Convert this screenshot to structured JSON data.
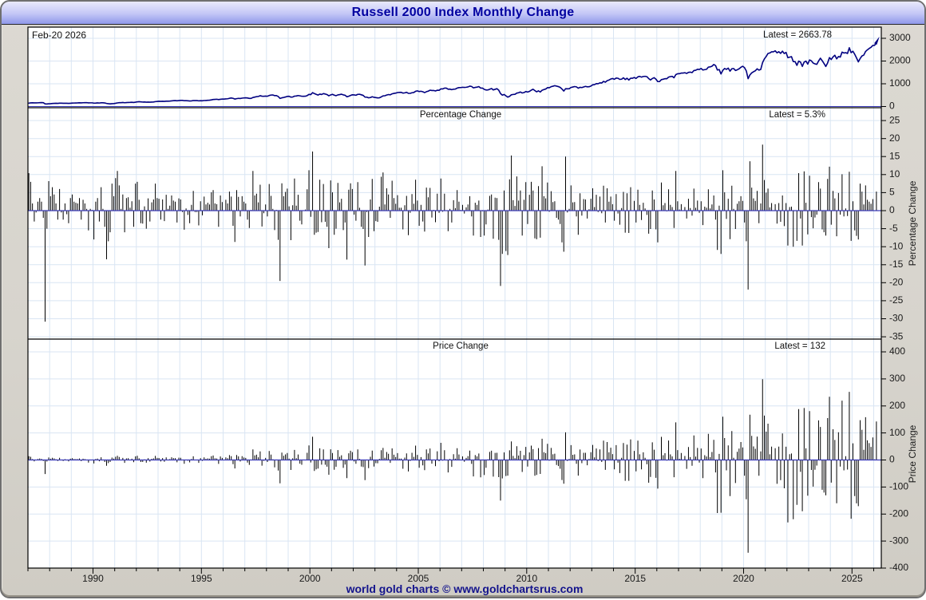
{
  "window": {
    "title": "Russell 2000 Index Monthly Change",
    "date_label": "Feb-20  2026",
    "footer": "world gold charts © www.goldchartsrus.com"
  },
  "colors": {
    "title_text": "#0000a0",
    "titlebar_top": "#e9e9fc",
    "titlebar_bottom": "#9098ea",
    "window_bg": "#d8d5ce",
    "plot_bg": "#ffffff",
    "gridline": "#d9e5f3",
    "axis_border": "#000000",
    "bar": "#000000",
    "index_line": "#000080",
    "zero_line": "#3a3ab8",
    "label_text": "#111111",
    "footer_text": "#14148c"
  },
  "panels": {
    "index": {
      "latest_label": "Latest = 2663.78",
      "ticks": [
        3000,
        2000,
        1000,
        0
      ]
    },
    "percent": {
      "title": "Percentage Change",
      "latest_label": "Latest = 5.3%",
      "axis_label": "Percentage Change",
      "ticks": [
        25,
        20,
        15,
        10,
        5,
        0,
        -5,
        -10,
        -15,
        -20,
        -25,
        -30,
        -35
      ]
    },
    "price": {
      "title": "Price Change",
      "latest_label": "Latest = 132",
      "axis_label": "Price Change",
      "ticks": [
        400,
        300,
        200,
        100,
        0,
        -100,
        -200,
        -300,
        -400
      ]
    }
  },
  "x_axis": {
    "year_tick_start": 1987,
    "year_tick_end": 2026,
    "labeled_years": [
      1990,
      1995,
      2000,
      2005,
      2010,
      2015,
      2020,
      2025
    ]
  },
  "chart_data": {
    "type": "line+bar",
    "title": "Russell 2000 Index Monthly Change",
    "x_start": {
      "year": 1987,
      "month": 1
    },
    "x_end": {
      "year": 2026,
      "month": 2
    },
    "start_prev_close": 135.0,
    "latest_index": 2663.78,
    "latest_pct_change": 5.3,
    "latest_price_change": 132,
    "index_axis_ticks": [
      0,
      1000,
      2000,
      3000
    ],
    "percent_axis_range": [
      -35,
      25
    ],
    "price_axis_range": [
      -400,
      400
    ],
    "note": "Monthly percent changes estimated from chart bars; top-panel index line and bottom-panel price changes are derived by compounding from start_prev_close.",
    "monthly_pct_change": [
      10.4,
      8.0,
      2.0,
      -3.0,
      -0.5,
      2.5,
      3.5,
      2.5,
      -2.0,
      -30.8,
      -5.0,
      8.2,
      4.0,
      6.5,
      4.5,
      2.0,
      -2.5,
      6.0,
      -0.5,
      -2.5,
      2.0,
      -1.0,
      -3.5,
      3.5,
      4.5,
      2.5,
      2.2,
      2.0,
      3.5,
      -2.5,
      3.0,
      2.0,
      0.5,
      -5.5,
      0.5,
      0.2,
      -8.0,
      2.5,
      3.5,
      -3.0,
      6.5,
      0.5,
      -4.5,
      -13.5,
      -8.5,
      -6.0,
      7.5,
      4.0,
      9.0,
      11.0,
      7.0,
      0.5,
      4.5,
      -6.0,
      3.5,
      3.7,
      0.8,
      2.6,
      -4.5,
      7.5,
      8.0,
      3.0,
      -3.5,
      -3.6,
      1.2,
      -5.0,
      3.4,
      -3.0,
      2.3,
      3.1,
      7.5,
      3.5,
      3.3,
      -2.5,
      3.1,
      -2.9,
      4.4,
      0.5,
      1.4,
      4.2,
      2.8,
      2.5,
      -3.3,
      3.4,
      3.1,
      -0.4,
      -5.3,
      0.6,
      -1.2,
      -3.5,
      1.6,
      5.5,
      -0.4,
      -0.4,
      -4.1,
      2.6,
      -1.3,
      3.9,
      1.7,
      2.2,
      1.7,
      5.1,
      5.7,
      2.0,
      1.8,
      -4.5,
      4.2,
      2.4,
      -0.1,
      3.0,
      2.0,
      5.3,
      3.9,
      -4.2,
      -8.7,
      5.7,
      3.8,
      -1.6,
      4.0,
      2.5,
      2.0,
      -2.5,
      -4.8,
      0.2,
      11.0,
      4.2,
      4.7,
      2.3,
      7.2,
      -4.4,
      -0.7,
      1.7,
      -1.6,
      7.4,
      4.1,
      0.5,
      -5.4,
      0.2,
      -8.1,
      -19.5,
      7.6,
      4.0,
      5.2,
      6.1,
      1.2,
      -8.2,
      1.5,
      8.9,
      1.4,
      4.4,
      -2.8,
      -3.8,
      -0.1,
      0.3,
      5.9,
      11.2,
      -1.7,
      16.4,
      -6.7,
      -6.1,
      -5.9,
      8.6,
      -3.2,
      7.4,
      -3.1,
      -4.5,
      -10.4,
      8.4,
      5.1,
      -6.7,
      -5.0,
      7.7,
      2.3,
      3.3,
      -5.4,
      -3.3,
      -13.6,
      5.8,
      7.6,
      6.0,
      -1.1,
      -2.8,
      7.9,
      0.8,
      -4.5,
      -5.1,
      -15.2,
      -0.4,
      -7.3,
      3.1,
      8.8,
      -5.7,
      -2.9,
      -3.1,
      1.1,
      9.4,
      10.6,
      1.7,
      6.2,
      4.5,
      -2.0,
      8.3,
      3.5,
      1.9,
      4.3,
      0.8,
      0.8,
      -5.2,
      1.5,
      4.1,
      -6.8,
      -0.6,
      4.6,
      1.9,
      8.6,
      2.8,
      -4.2,
      1.6,
      -3.0,
      -5.8,
      6.4,
      3.7,
      6.3,
      -1.9,
      0.2,
      -3.2,
      4.7,
      -0.6,
      8.9,
      -0.3,
      4.7,
      -0.1,
      -5.7,
      0.5,
      -3.3,
      2.9,
      0.7,
      5.7,
      2.5,
      0.2,
      1.6,
      -0.8,
      0.9,
      1.7,
      4.0,
      -1.6,
      -6.9,
      2.2,
      1.6,
      2.8,
      -7.3,
      -0.2,
      -6.9,
      -3.8,
      0.3,
      4.1,
      4.5,
      -7.8,
      3.6,
      3.5,
      -8.1,
      -20.9,
      -12.0,
      5.6,
      -11.2,
      -12.3,
      8.7,
      15.3,
      2.9,
      1.3,
      9.5,
      2.8,
      5.6,
      -6.9,
      3.0,
      7.9,
      -3.7,
      4.4,
      8.0,
      5.6,
      -7.7,
      -7.9,
      6.8,
      -7.5,
      12.3,
      4.0,
      3.4,
      7.8,
      -0.3,
      5.4,
      2.4,
      2.6,
      -2.0,
      -2.5,
      -3.7,
      -8.8,
      -11.4,
      15.0,
      -0.5,
      0.5,
      7.0,
      2.3,
      2.4,
      -1.6,
      -6.7,
      4.8,
      -1.4,
      3.2,
      3.1,
      -2.2,
      0.4,
      3.3,
      6.2,
      1.0,
      4.4,
      -0.4,
      3.9,
      -0.7,
      6.9,
      -3.3,
      6.2,
      2.5,
      3.9,
      1.8,
      -2.8,
      4.6,
      -0.8,
      -3.9,
      0.7,
      5.2,
      -6.1,
      4.8,
      -6.2,
      6.5,
      0.0,
      2.7,
      -3.3,
      5.8,
      1.6,
      -2.6,
      2.2,
      0.6,
      -1.2,
      -6.4,
      -5.1,
      5.6,
      3.1,
      -5.2,
      -8.8,
      -0.1,
      7.8,
      1.5,
      2.1,
      -0.2,
      5.9,
      1.6,
      1.0,
      -4.8,
      11.0,
      2.6,
      0.3,
      1.8,
      0.1,
      1.0,
      -2.2,
      3.3,
      0.7,
      -1.4,
      6.1,
      0.8,
      2.8,
      -0.6,
      2.6,
      -4.0,
      1.1,
      0.8,
      5.9,
      0.6,
      1.7,
      4.2,
      -2.5,
      -10.9,
      1.4,
      -12.0,
      11.2,
      5.1,
      -2.3,
      3.3,
      -7.9,
      6.9,
      0.5,
      -5.1,
      1.9,
      2.6,
      4.0,
      2.7,
      -3.3,
      -8.5,
      -21.9,
      13.7,
      6.4,
      3.4,
      2.7,
      5.5,
      -3.5,
      2.0,
      18.3,
      8.5,
      5.0,
      6.1,
      0.9,
      2.1,
      0.1,
      1.8,
      -3.6,
      2.1,
      -3.1,
      4.2,
      -4.3,
      2.1,
      -9.7,
      1.0,
      1.1,
      -10.0,
      0.0,
      -8.4,
      10.4,
      -2.2,
      -9.7,
      10.9,
      2.2,
      -6.6,
      9.7,
      -1.8,
      -4.9,
      -1.9,
      -1.1,
      7.9,
      6.1,
      -5.2,
      -6.0,
      -6.9,
      8.8,
      12.2,
      -3.9,
      5.5,
      3.4,
      -7.1,
      4.9,
      -1.1,
      10.1,
      -1.6,
      0.6,
      -1.5,
      10.8,
      -8.4,
      2.6,
      -5.5,
      -7.0,
      -8.0,
      7.5,
      5.3,
      1.7,
      7.0,
      3.0,
      2.5,
      1.9,
      3.2,
      0.1,
      5.3
    ]
  }
}
